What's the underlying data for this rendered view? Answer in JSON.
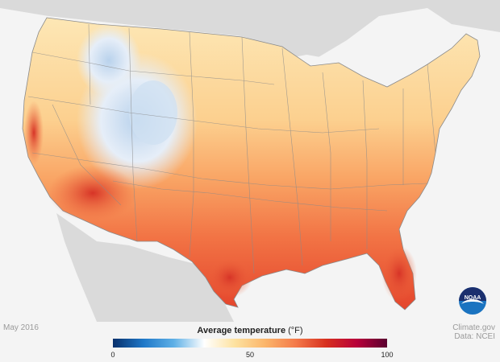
{
  "date_label": "May 2016",
  "credit": {
    "line1": "Climate.gov",
    "line2": "Data: NCEI"
  },
  "logo": {
    "text": "NOAA",
    "icon": "noaa-logo-icon"
  },
  "legend": {
    "title": "Average temperature",
    "unit": "(°F)",
    "min": 0,
    "max": 100,
    "ticks": [
      {
        "value": 0,
        "label": "0"
      },
      {
        "value": 50,
        "label": "50"
      },
      {
        "value": 100,
        "label": "100"
      }
    ],
    "colors": [
      "#08306b",
      "#1f78c8",
      "#5fb0e6",
      "#ffffff",
      "#fde2a0",
      "#fbb56a",
      "#f47a4a",
      "#d7301f",
      "#b8003a",
      "#5a0030"
    ]
  },
  "map": {
    "region": "Contiguous United States",
    "colors": {
      "ocean_land": "#dadada",
      "cool": "#c9dcef",
      "mild": "#fde4ad",
      "warm": "#fbc07a",
      "hot": "#f3874e",
      "hottest": "#e24a2e",
      "borders": "#8a8a8a"
    }
  }
}
